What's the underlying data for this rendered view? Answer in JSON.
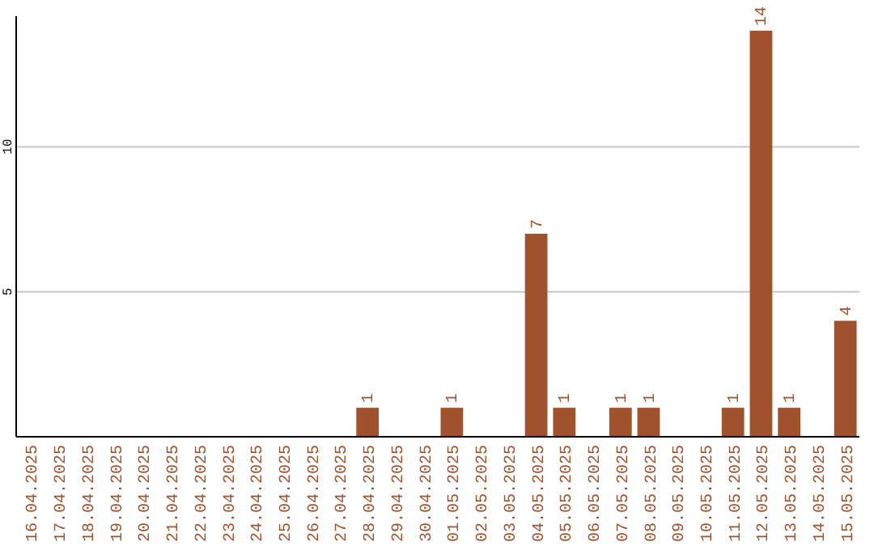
{
  "chart_data": {
    "type": "bar",
    "categories": [
      "16.04.2025",
      "17.04.2025",
      "18.04.2025",
      "19.04.2025",
      "20.04.2025",
      "21.04.2025",
      "22.04.2025",
      "23.04.2025",
      "24.04.2025",
      "25.04.2025",
      "26.04.2025",
      "27.04.2025",
      "28.04.2025",
      "29.04.2025",
      "30.04.2025",
      "01.05.2025",
      "02.05.2025",
      "03.05.2025",
      "04.05.2025",
      "05.05.2025",
      "06.05.2025",
      "07.05.2025",
      "08.05.2025",
      "09.05.2025",
      "10.05.2025",
      "11.05.2025",
      "12.05.2025",
      "13.05.2025",
      "14.05.2025",
      "15.05.2025"
    ],
    "values": [
      0,
      0,
      0,
      0,
      0,
      0,
      0,
      0,
      0,
      0,
      0,
      0,
      1,
      0,
      0,
      1,
      0,
      0,
      7,
      1,
      0,
      1,
      1,
      0,
      0,
      1,
      14,
      1,
      0,
      4
    ],
    "value_labels": [
      null,
      null,
      null,
      null,
      null,
      null,
      null,
      null,
      null,
      null,
      null,
      null,
      "1",
      null,
      null,
      "1",
      null,
      null,
      "7",
      "1",
      null,
      "1",
      "1",
      null,
      null,
      "1",
      "14",
      "1",
      null,
      "4"
    ],
    "color": "#a0522d",
    "ylim": [
      0,
      14.5
    ],
    "yticks": [
      5,
      10
    ],
    "grid": "y"
  }
}
